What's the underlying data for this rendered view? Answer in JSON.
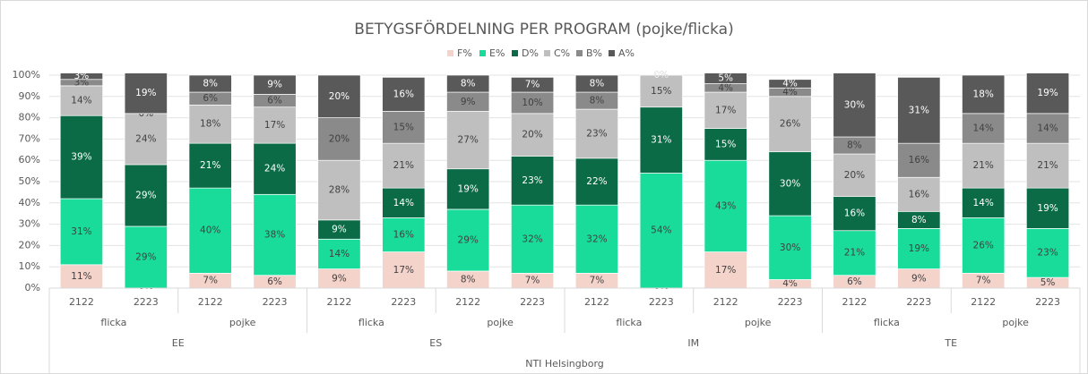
{
  "chart_data": {
    "type": "stacked_bar",
    "title": "BETYGSFÖRDELNING PER PROGRAM (pojke/flicka)",
    "categories": [
      "2122",
      "2223",
      "2122",
      "2223",
      "2122",
      "2223",
      "2122",
      "2223",
      "2122",
      "2223",
      "2122",
      "2223",
      "2122",
      "2223",
      "2122",
      "2223"
    ],
    "category_levels": [
      {
        "labels": [
          "flicka",
          "pojke",
          "flicka",
          "pojke",
          "flicka",
          "pojke",
          "flicka",
          "pojke"
        ]
      },
      {
        "labels": [
          "EE",
          "ES",
          "IM",
          "TE"
        ]
      },
      {
        "labels": [
          "NTI Helsingborg"
        ]
      }
    ],
    "series": [
      {
        "name": "F%",
        "color": "#f4d3cb",
        "values": [
          11,
          0,
          7,
          6,
          9,
          17,
          8,
          7,
          7,
          0,
          17,
          4,
          6,
          9,
          7,
          5
        ],
        "value_labels": [
          "11%",
          "0%",
          "7%",
          "6%",
          "9%",
          "17%",
          "8%",
          "7%",
          "7%",
          "0%",
          "17%",
          "4%",
          "6%",
          "9%",
          "7%",
          "5%"
        ]
      },
      {
        "name": "E%",
        "color": "#19dc9b",
        "values": [
          31,
          29,
          40,
          38,
          14,
          16,
          29,
          32,
          32,
          54,
          43,
          30,
          21,
          19,
          26,
          23
        ],
        "value_labels": [
          "31%",
          "29%",
          "40%",
          "38%",
          "14%",
          "16%",
          "29%",
          "32%",
          "32%",
          "54%",
          "43%",
          "30%",
          "21%",
          "19%",
          "26%",
          "23%"
        ]
      },
      {
        "name": "D%",
        "color": "#0b6b46",
        "values": [
          39,
          29,
          21,
          24,
          9,
          14,
          19,
          23,
          22,
          31,
          15,
          30,
          16,
          8,
          14,
          19
        ],
        "value_labels": [
          "39%",
          "29%",
          "21%",
          "24%",
          "9%",
          "14%",
          "19%",
          "23%",
          "22%",
          "31%",
          "15%",
          "30%",
          "16%",
          "8%",
          "14%",
          "19%"
        ]
      },
      {
        "name": "C%",
        "color": "#bfbfbf",
        "values": [
          14,
          24,
          18,
          17,
          28,
          21,
          27,
          20,
          23,
          15,
          17,
          26,
          20,
          16,
          21,
          21
        ],
        "value_labels": [
          "14%",
          "24%",
          "18%",
          "17%",
          "28%",
          "21%",
          "27%",
          "20%",
          "23%",
          "15%",
          "17%",
          "26%",
          "20%",
          "16%",
          "21%",
          "21%"
        ]
      },
      {
        "name": "B%",
        "color": "#8a8a8a",
        "values": [
          3,
          0,
          6,
          6,
          20,
          15,
          9,
          10,
          8,
          0,
          4,
          4,
          8,
          16,
          14,
          14
        ],
        "value_labels": [
          "3%",
          "0%",
          "6%",
          "6%",
          "20%",
          "15%",
          "9%",
          "10%",
          "8%",
          "0%",
          "4%",
          "4%",
          "8%",
          "16%",
          "14%",
          "14%"
        ]
      },
      {
        "name": "A%",
        "color": "#595959",
        "values": [
          3,
          19,
          8,
          9,
          20,
          16,
          8,
          7,
          8,
          0,
          5,
          4,
          30,
          31,
          18,
          19
        ],
        "value_labels": [
          "3%",
          "19%",
          "8%",
          "9%",
          "20%",
          "16%",
          "8%",
          "7%",
          "8%",
          "0%",
          "5%",
          "4%",
          "30%",
          "31%",
          "18%",
          "19%"
        ]
      }
    ],
    "ylim": [
      0,
      100
    ],
    "yticks": [
      {
        "value": 0,
        "label": "0%"
      },
      {
        "value": 10,
        "label": "10%"
      },
      {
        "value": 20,
        "label": "20%"
      },
      {
        "value": 30,
        "label": "30%"
      },
      {
        "value": 40,
        "label": "40%"
      },
      {
        "value": 50,
        "label": "50%"
      },
      {
        "value": 60,
        "label": "60%"
      },
      {
        "value": 70,
        "label": "70%"
      },
      {
        "value": 80,
        "label": "80%"
      },
      {
        "value": 90,
        "label": "90%"
      },
      {
        "value": 100,
        "label": "100%"
      }
    ],
    "grid": true,
    "legend": "top"
  }
}
